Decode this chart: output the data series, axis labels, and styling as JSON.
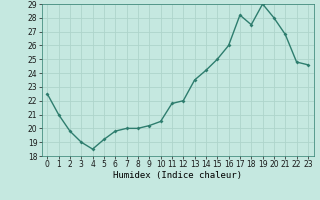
{
  "x": [
    0,
    1,
    2,
    3,
    4,
    5,
    6,
    7,
    8,
    9,
    10,
    11,
    12,
    13,
    14,
    15,
    16,
    17,
    18,
    19,
    20,
    21,
    22,
    23
  ],
  "y": [
    22.5,
    21.0,
    19.8,
    19.0,
    18.5,
    19.2,
    19.8,
    20.0,
    20.0,
    20.2,
    20.5,
    21.8,
    22.0,
    23.5,
    24.2,
    25.0,
    26.0,
    28.2,
    27.5,
    29.0,
    28.0,
    26.8,
    24.8,
    24.6
  ],
  "xlabel": "Humidex (Indice chaleur)",
  "ylim": [
    18,
    29
  ],
  "yticks": [
    18,
    19,
    20,
    21,
    22,
    23,
    24,
    25,
    26,
    27,
    28,
    29
  ],
  "xticks": [
    0,
    1,
    2,
    3,
    4,
    5,
    6,
    7,
    8,
    9,
    10,
    11,
    12,
    13,
    14,
    15,
    16,
    17,
    18,
    19,
    20,
    21,
    22,
    23
  ],
  "line_color": "#2e7d6e",
  "marker_color": "#2e7d6e",
  "bg_color": "#c5e8e0",
  "grid_color": "#aed4cb",
  "fig_bg": "#c5e8e0",
  "linewidth": 1.0,
  "markersize": 2.0
}
